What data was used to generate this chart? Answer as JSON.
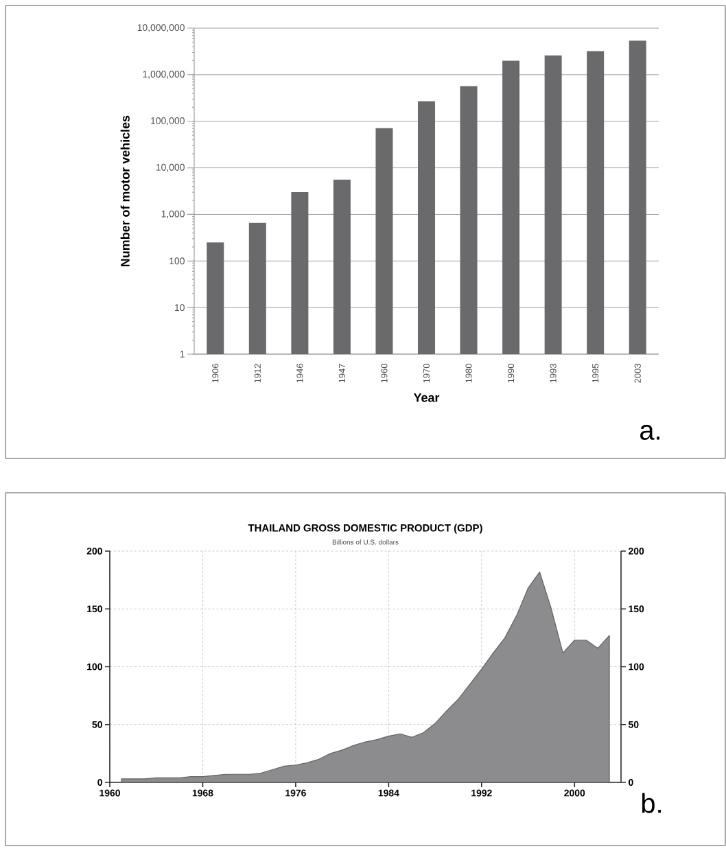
{
  "chart_data": [
    {
      "type": "bar",
      "xlabel": "Year",
      "ylabel": "Number of motor vehicles",
      "log": true,
      "grid": "y",
      "color": "#6a6a6c",
      "categories": [
        "1906",
        "1912",
        "1946",
        "1947",
        "1960",
        "1970",
        "1980",
        "1990",
        "1993",
        "1995",
        "2003"
      ],
      "values": [
        250,
        660,
        3000,
        5600,
        71000,
        270000,
        570000,
        2000000,
        2600000,
        3200000,
        5400000
      ],
      "ylim": [
        1,
        10000000
      ],
      "yticks": [
        {
          "value": 1,
          "label": "1"
        },
        {
          "value": 10,
          "label": "10"
        },
        {
          "value": 100,
          "label": "100"
        },
        {
          "value": 1000,
          "label": "1,000"
        },
        {
          "value": 10000,
          "label": "10,000"
        },
        {
          "value": 100000,
          "label": "100,000"
        },
        {
          "value": 1000000,
          "label": "1,000,000"
        },
        {
          "value": 10000000,
          "label": "10,000,000"
        }
      ],
      "annotations": [
        "a."
      ]
    },
    {
      "type": "area",
      "title": "THAILAND GROSS DOMESTIC PRODUCT (GDP)",
      "subtitle": "Billions of U.S. dollars",
      "grid": true,
      "color": "#8c8c8e",
      "x": [
        1961,
        1962,
        1963,
        1964,
        1965,
        1966,
        1967,
        1968,
        1969,
        1970,
        1971,
        1972,
        1973,
        1974,
        1975,
        1976,
        1977,
        1978,
        1979,
        1980,
        1981,
        1982,
        1983,
        1984,
        1985,
        1986,
        1987,
        1988,
        1989,
        1990,
        1991,
        1992,
        1993,
        1994,
        1995,
        1996,
        1997,
        1998,
        1999,
        2000,
        2001,
        2002,
        2003
      ],
      "values": [
        3,
        3,
        3,
        4,
        4,
        4,
        5,
        5,
        6,
        7,
        7,
        7,
        8,
        11,
        14,
        15,
        17,
        20,
        25,
        28,
        32,
        35,
        37,
        40,
        42,
        39,
        43,
        51,
        62,
        72,
        85,
        98,
        112,
        125,
        144,
        168,
        182,
        150,
        112,
        123,
        123,
        116,
        127
      ],
      "xlim": [
        1960,
        2004
      ],
      "xticks": [
        1960,
        1968,
        1976,
        1984,
        1992,
        2000
      ],
      "ylim": [
        0,
        200
      ],
      "yticks": [
        0,
        50,
        100,
        150,
        200
      ],
      "y2lim": [
        0,
        200
      ],
      "y2ticks": [
        0,
        50,
        100,
        150,
        200
      ],
      "annotations": [
        "b."
      ]
    }
  ]
}
